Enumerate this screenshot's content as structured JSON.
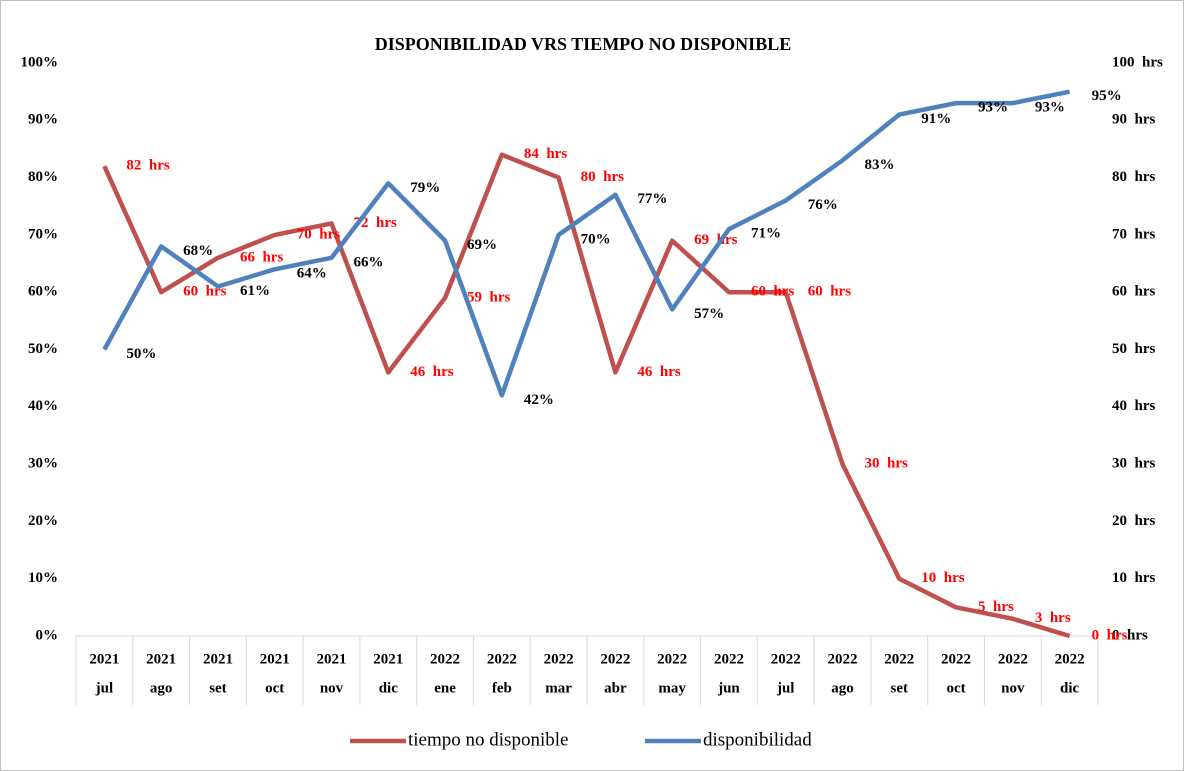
{
  "chart_data": {
    "type": "line",
    "title": "DISPONIBILIDAD VRS TIEMPO NO DISPONIBLE",
    "categories": [
      "jul",
      "ago",
      "set",
      "oct",
      "nov",
      "dic",
      "ene",
      "feb",
      "mar",
      "abr",
      "may",
      "jun",
      "jul",
      "ago",
      "set",
      "oct",
      "nov",
      "dic"
    ],
    "category_years": [
      "2021",
      "2021",
      "2021",
      "2021",
      "2021",
      "2021",
      "2022",
      "2022",
      "2022",
      "2022",
      "2022",
      "2022",
      "2022",
      "2022",
      "2022",
      "2022",
      "2022",
      "2022"
    ],
    "series": [
      {
        "name": "tiempo no disponible",
        "color": "#c0504d",
        "axis": "y2",
        "label_color": "#ff0000",
        "values": [
          82,
          60,
          66,
          70,
          72,
          46,
          59,
          84,
          80,
          46,
          69,
          60,
          60,
          30,
          10,
          5,
          3,
          0
        ],
        "value_labels": [
          "82  hrs",
          "60  hrs",
          "66  hrs",
          "70  hrs",
          "72  hrs",
          "46  hrs",
          "59  hrs",
          "84  hrs",
          "80  hrs",
          "46  hrs",
          "69  hrs",
          "60  hrs",
          "60  hrs",
          "30  hrs",
          "10  hrs",
          "5  hrs",
          "3  hrs",
          "0  hrs"
        ]
      },
      {
        "name": "disponibilidad",
        "color": "#4f81bd",
        "axis": "y",
        "label_color": "#000000",
        "values": [
          50,
          68,
          61,
          64,
          66,
          79,
          69,
          42,
          70,
          77,
          57,
          71,
          76,
          83,
          91,
          93,
          93,
          95
        ],
        "value_labels": [
          "50%",
          "68%",
          "61%",
          "64%",
          "66%",
          "79%",
          "69%",
          "42%",
          "70%",
          "77%",
          "57%",
          "71%",
          "76%",
          "83%",
          "91%",
          "93%",
          "93%",
          "95%"
        ]
      }
    ],
    "ylim": [
      0,
      100
    ],
    "yticks": [
      {
        "value": 0,
        "label": "0%"
      },
      {
        "value": 10,
        "label": "10%"
      },
      {
        "value": 20,
        "label": "20%"
      },
      {
        "value": 30,
        "label": "30%"
      },
      {
        "value": 40,
        "label": "40%"
      },
      {
        "value": 50,
        "label": "50%"
      },
      {
        "value": 60,
        "label": "60%"
      },
      {
        "value": 70,
        "label": "70%"
      },
      {
        "value": 80,
        "label": "80%"
      },
      {
        "value": 90,
        "label": "90%"
      },
      {
        "value": 100,
        "label": "100%"
      }
    ],
    "y2lim": [
      0,
      100
    ],
    "y2ticks": [
      {
        "value": 0,
        "label": "0  hrs"
      },
      {
        "value": 10,
        "label": "10  hrs"
      },
      {
        "value": 20,
        "label": "20  hrs"
      },
      {
        "value": 30,
        "label": "30  hrs"
      },
      {
        "value": 40,
        "label": "40  hrs"
      },
      {
        "value": 50,
        "label": "50  hrs"
      },
      {
        "value": 60,
        "label": "60  hrs"
      },
      {
        "value": 70,
        "label": "70  hrs"
      },
      {
        "value": 80,
        "label": "80  hrs"
      },
      {
        "value": 90,
        "label": "90  hrs"
      },
      {
        "value": 100,
        "label": "100  hrs"
      }
    ],
    "grid": false,
    "legend": "bottom"
  }
}
